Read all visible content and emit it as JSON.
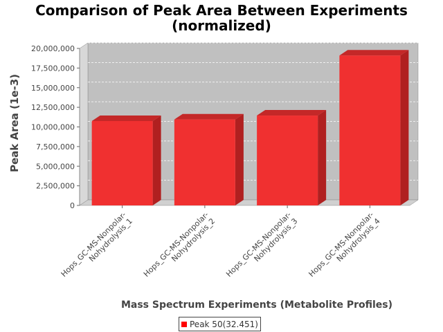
{
  "chart_data": {
    "type": "bar",
    "title": "Comparison of Peak Area Between Experiments",
    "subtitle": "(normalized)",
    "xlabel": "Mass Spectrum Experiments (Metabolite Profiles)",
    "ylabel": "Peak Area (1e-3)",
    "categories": [
      "Hops_GC-MS-Nonpolar-Nohydrolysis_1",
      "Hops_GC-MS-Nonpolar-Nohydrolysis_2",
      "Hops_GC-MS-Nonpolar-Nohydrolysis_3",
      "Hops_GC-MS-Nonpolar-Nohydrolysis_4"
    ],
    "category_lines": [
      [
        "Hops_GC-MS-Nonpolar-",
        "Nohydrolysis_1"
      ],
      [
        "Hops_GC-MS-Nonpolar-",
        "Nohydrolysis_2"
      ],
      [
        "Hops_GC-MS-Nonpolar-",
        "Nohydrolysis_3"
      ],
      [
        "Hops_GC-MS-Nonpolar-",
        "Nohydrolysis_4"
      ]
    ],
    "series": [
      {
        "name": "Peak 50(32.451)",
        "values": [
          10750000,
          10950000,
          11450000,
          19100000
        ]
      }
    ],
    "ylim": [
      0,
      20000000
    ],
    "yticks": [
      0,
      2500000,
      5000000,
      7500000,
      10000000,
      12500000,
      15000000,
      17500000,
      20000000
    ],
    "ytick_labels": [
      "0",
      "2,500,000",
      "5,000,000",
      "7,500,000",
      "10,000,000",
      "12,500,000",
      "15,000,000",
      "17,500,000",
      "20,000,000"
    ],
    "grid": true,
    "legend_position": "bottom-center",
    "colors": {
      "bar_front": "#f03030",
      "bar_side": "#b02020",
      "bar_top": "#c42828",
      "plot_back": "#c0c0c0"
    }
  }
}
